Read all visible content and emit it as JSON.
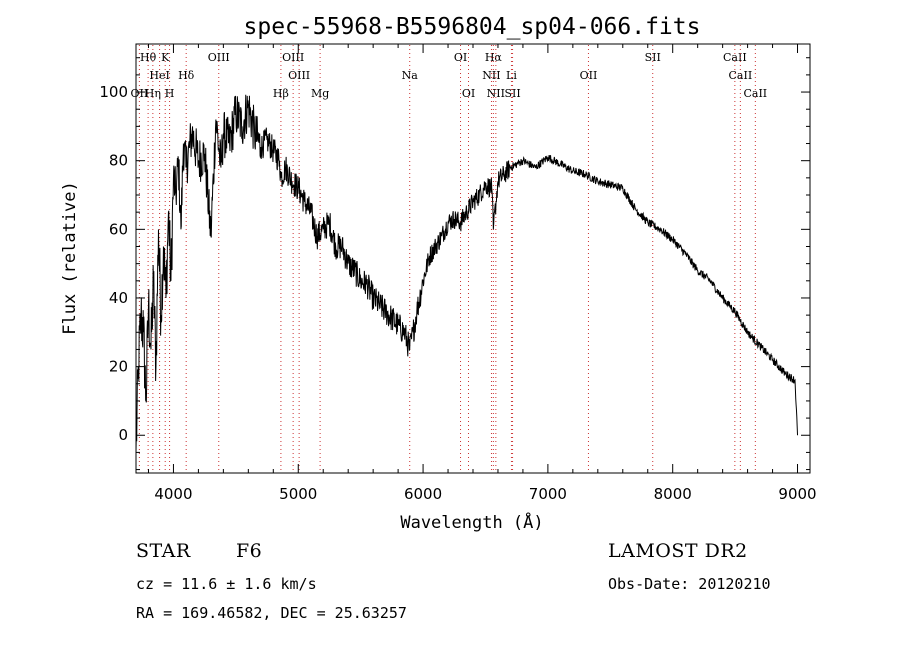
{
  "chart_data": {
    "type": "line",
    "title": "spec-55968-B5596804_sp04-066.fits",
    "xlabel": "Wavelength (Å)",
    "ylabel": "Flux (relative)",
    "xlim": [
      3700,
      9100
    ],
    "ylim": [
      -11,
      114
    ],
    "xticks": [
      4000,
      5000,
      6000,
      7000,
      8000,
      9000
    ],
    "yticks": [
      0,
      20,
      40,
      60,
      80,
      100
    ],
    "grid": false,
    "line_color": "#000000",
    "marker_line_color": "#cc3333",
    "series": [
      {
        "x": [
          3700,
          3720,
          3740,
          3760,
          3780,
          3800,
          3820,
          3840,
          3860,
          3880,
          3900,
          3920,
          3940,
          3960,
          3980,
          4000,
          4020,
          4040,
          4060,
          4080,
          4100,
          4150,
          4200,
          4250,
          4300,
          4340,
          4380,
          4400,
          4450,
          4500,
          4550,
          4600,
          4650,
          4700,
          4750,
          4800,
          4850,
          4861,
          4900,
          4950,
          5000,
          5050,
          5100,
          5150,
          5200,
          5250,
          5300,
          5350,
          5400,
          5450,
          5500,
          5550,
          5600,
          5650,
          5700,
          5750,
          5800,
          5850,
          5893,
          5920,
          5950,
          6000,
          6050,
          6100,
          6150,
          6200,
          6250,
          6300,
          6350,
          6400,
          6450,
          6500,
          6550,
          6563,
          6600,
          6650,
          6700,
          6750,
          6800,
          6900,
          7000,
          7100,
          7200,
          7300,
          7400,
          7500,
          7600,
          7700,
          7800,
          7900,
          8000,
          8100,
          8200,
          8300,
          8400,
          8500,
          8600,
          8700,
          8800,
          8900,
          8980,
          9000
        ],
        "y": [
          -5,
          20,
          35,
          30,
          10,
          38,
          25,
          45,
          20,
          60,
          35,
          55,
          40,
          65,
          45,
          75,
          70,
          80,
          60,
          85,
          78,
          88,
          80,
          82,
          58,
          92,
          78,
          88,
          85,
          94,
          90,
          96,
          88,
          84,
          86,
          83,
          80,
          75,
          78,
          74,
          72,
          68,
          65,
          58,
          60,
          62,
          55,
          55,
          50,
          48,
          45,
          44,
          40,
          38,
          36,
          34,
          32,
          30,
          25,
          30,
          36,
          45,
          52,
          55,
          58,
          62,
          63,
          62,
          65,
          68,
          70,
          73,
          72,
          60,
          74,
          76,
          78,
          79,
          80,
          78,
          81,
          79,
          77,
          76,
          74,
          73,
          72,
          66,
          62,
          60,
          57,
          53,
          48,
          45,
          40,
          36,
          30,
          26,
          22,
          18,
          16,
          0
        ]
      }
    ],
    "line_markers": [
      {
        "label": "Hθ",
        "x": 3797,
        "row": 0
      },
      {
        "label": "K",
        "x": 3934,
        "row": 0
      },
      {
        "label": "OIII",
        "x": 4363,
        "row": 0
      },
      {
        "label": "OIII",
        "x": 4959,
        "row": 0
      },
      {
        "label": "OI",
        "x": 6300,
        "row": 0
      },
      {
        "label": "Hα",
        "x": 6563,
        "row": 0
      },
      {
        "label": "SII",
        "x": 7840,
        "row": 0
      },
      {
        "label": "CaII",
        "x": 8498,
        "row": 0
      },
      {
        "label": "HeI",
        "x": 3889,
        "row": 1
      },
      {
        "label": "Hδ",
        "x": 4102,
        "row": 1
      },
      {
        "label": "OIII",
        "x": 5007,
        "row": 1
      },
      {
        "label": "Na",
        "x": 5893,
        "row": 1
      },
      {
        "label": "NII",
        "x": 6548,
        "row": 1
      },
      {
        "label": "Li",
        "x": 6708,
        "row": 1
      },
      {
        "label": "OII",
        "x": 7325,
        "row": 1
      },
      {
        "label": "CaII",
        "x": 8542,
        "row": 1
      },
      {
        "label": "OII",
        "x": 3727,
        "row": 2
      },
      {
        "label": "Hη",
        "x": 3835,
        "row": 2
      },
      {
        "label": "H",
        "x": 3969,
        "row": 2
      },
      {
        "label": "Hβ",
        "x": 4861,
        "row": 2
      },
      {
        "label": "Mg",
        "x": 5175,
        "row": 2
      },
      {
        "label": "OI",
        "x": 6364,
        "row": 2
      },
      {
        "label": "NII",
        "x": 6583,
        "row": 2
      },
      {
        "label": "SII",
        "x": 6717,
        "row": 2
      },
      {
        "label": "CaII",
        "x": 8662,
        "row": 2
      }
    ]
  },
  "info": {
    "object_type": "STAR",
    "subclass": "F6",
    "survey": "LAMOST DR2",
    "cz": "cz = 11.6 ± 1.6 km/s",
    "obs_date": "Obs-Date: 20120210",
    "coords": "RA = 169.46582, DEC =  25.63257"
  }
}
